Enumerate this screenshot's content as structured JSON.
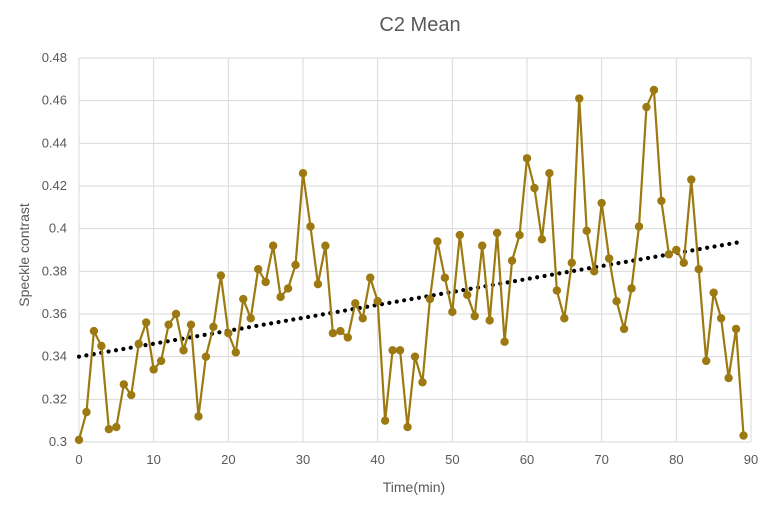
{
  "chart_data": {
    "type": "line",
    "title": "C2 Mean",
    "xlabel": "Time(min)",
    "ylabel": "Speckle contrast",
    "xlim": [
      0,
      90
    ],
    "ylim": [
      0.3,
      0.48
    ],
    "xticks": [
      "0",
      "10",
      "20",
      "30",
      "40",
      "50",
      "60",
      "70",
      "80",
      "90"
    ],
    "yticks": [
      "0.3",
      "0.32",
      "0.34",
      "0.36",
      "0.38",
      "0.4",
      "0.42",
      "0.44",
      "0.46",
      "0.48"
    ],
    "grid": "vertical and horizontal",
    "series": [
      {
        "name": "",
        "color": "#9C7A11",
        "x": [
          0,
          1,
          2,
          3,
          4,
          5,
          6,
          7,
          8,
          9,
          10,
          11,
          12,
          13,
          14,
          15,
          16,
          17,
          18,
          19,
          20,
          21,
          22,
          23,
          24,
          25,
          26,
          27,
          28,
          29,
          30,
          31,
          32,
          33,
          34,
          35,
          36,
          37,
          38,
          39,
          40,
          41,
          42,
          43,
          44,
          45,
          46,
          47,
          48,
          49,
          50,
          51,
          52,
          53,
          54,
          55,
          56,
          57,
          58,
          59,
          60,
          61,
          62,
          63,
          64,
          65,
          66,
          67,
          68,
          69,
          70,
          71,
          72,
          73,
          74,
          75,
          76,
          77,
          78,
          79,
          80,
          81,
          82,
          83,
          84,
          85,
          86,
          87,
          88,
          89
        ],
        "values": [
          0.301,
          0.314,
          0.352,
          0.345,
          0.306,
          0.307,
          0.327,
          0.322,
          0.346,
          0.356,
          0.334,
          0.338,
          0.355,
          0.36,
          0.343,
          0.355,
          0.312,
          0.34,
          0.354,
          0.378,
          0.351,
          0.342,
          0.367,
          0.358,
          0.381,
          0.375,
          0.392,
          0.368,
          0.372,
          0.383,
          0.426,
          0.401,
          0.374,
          0.392,
          0.351,
          0.352,
          0.349,
          0.365,
          0.358,
          0.377,
          0.366,
          0.31,
          0.343,
          0.343,
          0.307,
          0.34,
          0.328,
          0.367,
          0.394,
          0.377,
          0.361,
          0.397,
          0.369,
          0.359,
          0.392,
          0.357,
          0.398,
          0.347,
          0.385,
          0.397,
          0.433,
          0.419,
          0.395,
          0.426,
          0.371,
          0.358,
          0.384,
          0.461,
          0.399,
          0.38,
          0.412,
          0.386,
          0.366,
          0.353,
          0.372,
          0.401,
          0.457,
          0.465,
          0.413,
          0.388,
          0.39,
          0.384,
          0.423,
          0.381,
          0.338,
          0.37,
          0.358,
          0.33,
          0.353,
          0.303
        ]
      }
    ],
    "trendline": {
      "style": "dotted",
      "color": "#000000",
      "x_start": 0,
      "x_end": 89,
      "y_start": 0.34,
      "y_end": 0.394
    }
  }
}
